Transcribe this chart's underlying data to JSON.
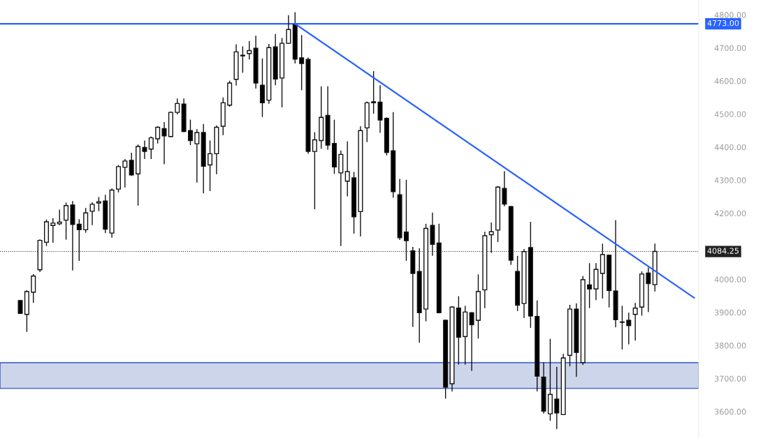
{
  "chart_data": {
    "type": "candlestick",
    "categories": [
      null,
      null,
      null,
      null,
      null,
      null,
      null,
      null,
      null,
      null,
      null,
      null,
      null,
      null,
      null,
      null,
      null,
      null,
      null,
      null,
      null,
      null,
      null,
      null,
      null,
      null,
      null,
      null,
      null,
      null,
      null,
      null,
      null,
      null,
      null,
      null,
      null,
      null,
      null,
      null,
      null,
      null,
      null,
      null,
      null,
      null,
      null,
      null,
      null,
      null,
      null,
      null,
      null,
      null,
      null,
      null,
      null,
      null,
      null,
      null,
      null,
      null,
      null,
      null,
      null,
      null,
      null,
      null,
      null,
      null,
      null,
      null,
      null,
      null,
      null,
      null,
      null,
      null,
      null,
      null,
      null,
      null,
      null,
      null,
      null,
      null,
      null,
      null,
      null,
      null,
      null,
      null,
      null,
      null,
      null,
      null,
      null,
      null,
      null,
      null,
      null,
      null,
      null,
      null
    ],
    "ohlc": [
      [
        3936,
        3938,
        3895,
        3897
      ],
      [
        3894,
        3967,
        3841,
        3963
      ],
      [
        3961,
        4016,
        3929,
        4010
      ],
      [
        4029,
        4121,
        4022,
        4118
      ],
      [
        4112,
        4181,
        4101,
        4174
      ],
      [
        4163,
        4185,
        4111,
        4170
      ],
      [
        4168,
        4211,
        4164,
        4173
      ],
      [
        4179,
        4232,
        4120,
        4223
      ],
      [
        4225,
        4237,
        4027,
        4166
      ],
      [
        4167,
        4182,
        4056,
        4150
      ],
      [
        4150,
        4216,
        4141,
        4201
      ],
      [
        4206,
        4233,
        4164,
        4227
      ],
      [
        4231,
        4249,
        4206,
        4235
      ],
      [
        4237,
        4256,
        4140,
        4152
      ],
      [
        4140,
        4275,
        4126,
        4270
      ],
      [
        4273,
        4346,
        4263,
        4341
      ],
      [
        4339,
        4364,
        4278,
        4358
      ],
      [
        4360,
        4383,
        4313,
        4316
      ],
      [
        4319,
        4408,
        4223,
        4402
      ],
      [
        4399,
        4420,
        4364,
        4387
      ],
      [
        4394,
        4432,
        4364,
        4428
      ],
      [
        4425,
        4463,
        4411,
        4460
      ],
      [
        4456,
        4476,
        4348,
        4434
      ],
      [
        4432,
        4508,
        4430,
        4505
      ],
      [
        4505,
        4547,
        4499,
        4532
      ],
      [
        4530,
        4547,
        4445,
        4447
      ],
      [
        4450,
        4483,
        4406,
        4420
      ],
      [
        4410,
        4454,
        4293,
        4444
      ],
      [
        4444,
        4470,
        4260,
        4342
      ],
      [
        4346,
        4420,
        4267,
        4380
      ],
      [
        4380,
        4466,
        4318,
        4460
      ],
      [
        4463,
        4550,
        4436,
        4534
      ],
      [
        4527,
        4601,
        4522,
        4594
      ],
      [
        4605,
        4711,
        4586,
        4688
      ],
      [
        4676,
        4705,
        4625,
        4678
      ],
      [
        4683,
        4721,
        4665,
        4692
      ],
      [
        4699,
        4737,
        4577,
        4594
      ],
      [
        4587,
        4668,
        4491,
        4534
      ],
      [
        4542,
        4712,
        4531,
        4701
      ],
      [
        4703,
        4742,
        4587,
        4606
      ],
      [
        4609,
        4730,
        4520,
        4714
      ],
      [
        4714,
        4799,
        4712,
        4756
      ],
      [
        4770,
        4808,
        4653,
        4666
      ],
      [
        4670,
        4739,
        4572,
        4653
      ],
      [
        4665,
        4671,
        4380,
        4387
      ],
      [
        4387,
        4445,
        4212,
        4422
      ],
      [
        4420,
        4584,
        4395,
        4490
      ],
      [
        4496,
        4584,
        4392,
        4406
      ],
      [
        4411,
        4483,
        4319,
        4340
      ],
      [
        4322,
        4390,
        4101,
        4378
      ],
      [
        4297,
        4417,
        4251,
        4326
      ],
      [
        4307,
        4325,
        4138,
        4189
      ],
      [
        4205,
        4463,
        4130,
        4450
      ],
      [
        4458,
        4538,
        4415,
        4534
      ],
      [
        4534,
        4630,
        4501,
        4537
      ],
      [
        4536,
        4587,
        4443,
        4482
      ],
      [
        4487,
        4490,
        4375,
        4384
      ],
      [
        4389,
        4506,
        4247,
        4265
      ],
      [
        4256,
        4304,
        4119,
        4126
      ],
      [
        4143,
        4301,
        4056,
        4117
      ],
      [
        4086,
        4098,
        3856,
        4018
      ],
      [
        4024,
        4094,
        3808,
        3899
      ],
      [
        3910,
        4168,
        3873,
        4154
      ],
      [
        4163,
        4202,
        4071,
        4106
      ],
      [
        4110,
        4168,
        3897,
        3899
      ],
      [
        3876,
        3878,
        3639,
        3674
      ],
      [
        3684,
        3918,
        3661,
        3916
      ],
      [
        3913,
        3949,
        3742,
        3825
      ],
      [
        3827,
        3920,
        3742,
        3901
      ],
      [
        3899,
        3901,
        3723,
        3863
      ],
      [
        3876,
        4015,
        3821,
        3963
      ],
      [
        3968,
        4144,
        3913,
        4132
      ],
      [
        4135,
        4172,
        4080,
        4144
      ],
      [
        4149,
        4282,
        4113,
        4279
      ],
      [
        4275,
        4327,
        4221,
        4228
      ],
      [
        4220,
        4222,
        4044,
        4058
      ],
      [
        4024,
        4071,
        3904,
        3922
      ],
      [
        3927,
        4092,
        3883,
        4084
      ],
      [
        4096,
        4174,
        3853,
        3889
      ],
      [
        3888,
        3936,
        3661,
        3707
      ],
      [
        3704,
        3749,
        3594,
        3601
      ],
      [
        3593,
        3820,
        3572,
        3652
      ],
      [
        3638,
        3735,
        3547,
        3596
      ],
      [
        3591,
        3775,
        3589,
        3762
      ],
      [
        3770,
        3923,
        3737,
        3910
      ],
      [
        3910,
        3927,
        3705,
        3779
      ],
      [
        3748,
        4010,
        3741,
        3999
      ],
      [
        3983,
        4049,
        3913,
        3971
      ],
      [
        3971,
        4049,
        3937,
        4030
      ],
      [
        4018,
        4108,
        3942,
        4075
      ],
      [
        4073,
        4075,
        3915,
        3966
      ],
      [
        3965,
        4179,
        3855,
        3878
      ],
      [
        3871,
        3920,
        3788,
        3870
      ],
      [
        3876,
        3899,
        3803,
        3860
      ],
      [
        3894,
        3929,
        3815,
        3913
      ],
      [
        3916,
        4024,
        3890,
        4016
      ],
      [
        4019,
        4036,
        3901,
        3987
      ],
      [
        3984,
        4108,
        3963,
        4084.25
      ],
      null,
      null,
      null,
      null,
      null,
      null
    ],
    "series": [
      {
        "type": "line",
        "color": "#2962ff",
        "values": [
          null,
          null,
          null,
          null,
          null,
          null,
          null,
          null,
          null,
          null,
          null,
          null,
          null,
          null,
          null,
          null,
          null,
          null,
          null,
          null,
          null,
          null,
          null,
          null,
          null,
          null,
          null,
          null,
          null,
          null,
          null,
          null,
          null,
          null,
          null,
          null,
          null,
          null,
          null,
          null,
          null,
          null,
          4773,
          null,
          null,
          null,
          null,
          null,
          null,
          null,
          null,
          null,
          null,
          null,
          null,
          null,
          null,
          null,
          null,
          null,
          null,
          null,
          null,
          null,
          null,
          null,
          null,
          null,
          null,
          null,
          null,
          null,
          null,
          null,
          null,
          null,
          null,
          null,
          null,
          null,
          null,
          null,
          null,
          null,
          null,
          null,
          null,
          null,
          null,
          null,
          null,
          null,
          null,
          null,
          null,
          null,
          null,
          null,
          null,
          null,
          null,
          null,
          null,
          3944
        ]
      }
    ],
    "ylim": [
      3520,
      4845
    ],
    "yticks": [
      {
        "value": 3600,
        "label": "3600.00"
      },
      {
        "value": 3700,
        "label": "3700.00"
      },
      {
        "value": 3800,
        "label": "3800.00"
      },
      {
        "value": 3900,
        "label": "3900.00"
      },
      {
        "value": 4000,
        "label": "4000.00"
      },
      {
        "value": 4200,
        "label": "4200.00"
      },
      {
        "value": 4300,
        "label": "4300.00"
      },
      {
        "value": 4400,
        "label": "4400.00"
      },
      {
        "value": 4500,
        "label": "4500.00"
      },
      {
        "value": 4600,
        "label": "4600.00"
      },
      {
        "value": 4700,
        "label": "4700.00"
      },
      {
        "value": 4800,
        "label": "4800.00"
      }
    ],
    "ref_lines": [
      {
        "axis": "y",
        "value": 4773,
        "label": "4773.00",
        "color": "#2962ff",
        "line_style": "solid"
      },
      {
        "axis": "y",
        "value": 4084.25,
        "label": "4084.25",
        "color": "#222222",
        "line_style": "dotted"
      }
    ],
    "bands": [
      {
        "axis": "y",
        "from": 3670,
        "to": 3748,
        "color": "#cdd5ea"
      }
    ],
    "grid": false
  }
}
